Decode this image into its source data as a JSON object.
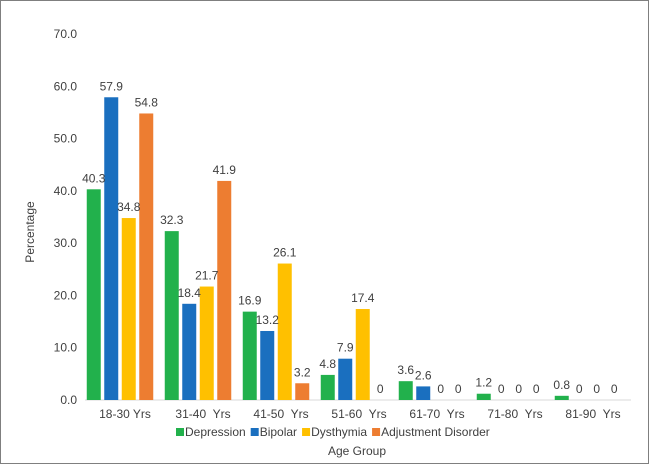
{
  "chart_data": {
    "type": "bar",
    "title": "",
    "xlabel": "Age Group",
    "ylabel": "Percentage",
    "ylim": [
      0,
      70
    ],
    "yticks": [
      "0.0",
      "10.0",
      "20.0",
      "30.0",
      "40.0",
      "50.0",
      "60.0",
      "70.0"
    ],
    "grid": false,
    "legend_position": "bottom",
    "categories": [
      "18-30 Yrs",
      "31-40  Yrs",
      "41-50  Yrs",
      "51-60  Yrs",
      "61-70  Yrs",
      "71-80  Yrs",
      "81-90  Yrs"
    ],
    "series": [
      {
        "name": "Depression",
        "color": "#22b14c",
        "values": [
          40.3,
          32.3,
          16.9,
          4.8,
          3.6,
          1.2,
          0.8
        ],
        "labels": [
          "40.3",
          "32.3",
          "16.9",
          "4.8",
          "3.6",
          "1.2",
          "0.8"
        ]
      },
      {
        "name": "Bipolar",
        "color": "#1a6fbf",
        "values": [
          57.9,
          18.4,
          13.2,
          7.9,
          2.6,
          0,
          0
        ],
        "labels": [
          "57.9",
          "18.4",
          "13.2",
          "7.9",
          "2.6",
          "0",
          "0"
        ]
      },
      {
        "name": "Dysthymia",
        "color": "#ffc000",
        "values": [
          34.8,
          21.7,
          26.1,
          17.4,
          0,
          0,
          0
        ],
        "labels": [
          "34.8",
          "21.7",
          "26.1",
          "17.4",
          "0",
          "0",
          "0"
        ]
      },
      {
        "name": "Adjustment Disorder",
        "color": "#ed7d31",
        "values": [
          54.8,
          41.9,
          3.2,
          0,
          0,
          0,
          0
        ],
        "labels": [
          "54.8",
          "41.9",
          "3.2",
          "0",
          "0",
          "0",
          "0"
        ]
      }
    ]
  }
}
